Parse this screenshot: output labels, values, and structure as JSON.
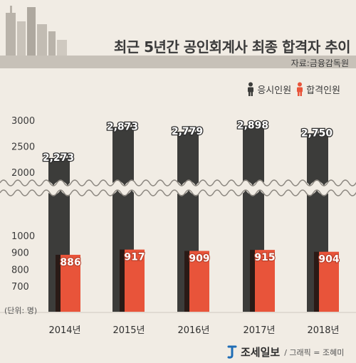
{
  "header": {
    "title": "최근 5년간 공인회계사 최종 합격자 추이",
    "source": "자료:금융감독원"
  },
  "legend": {
    "applicants_label": "응시인원",
    "passers_label": "합격인원",
    "applicants_icon": "person-icon",
    "passers_icon": "person-icon"
  },
  "unit_label": "(단위: 명)",
  "footer": {
    "brand": "조세일보",
    "credit": "/ 그래픽 = 조혜미",
    "logo_icon": "brand-logo-icon"
  },
  "colors": {
    "background": "#f1ece4",
    "applicants": "#3c3c3a",
    "passers": "#e8543a",
    "shadow": "#2a1a16"
  },
  "chart_data": {
    "type": "bar",
    "categories": [
      "2014년",
      "2015년",
      "2016년",
      "2017년",
      "2018년"
    ],
    "series": [
      {
        "name": "응시인원",
        "values": [
          2273,
          2873,
          2779,
          2898,
          2750
        ],
        "labels": [
          "2,273",
          "2,873",
          "2,779",
          "2,898",
          "2,750"
        ]
      },
      {
        "name": "합격인원",
        "values": [
          886,
          917,
          909,
          915,
          904
        ],
        "labels": [
          "886",
          "917",
          "909",
          "915",
          "904"
        ]
      }
    ],
    "y_axis": {
      "broken": true,
      "lower_range": [
        700,
        1000
      ],
      "upper_range": [
        2000,
        3000
      ],
      "ticks": [
        "3000",
        "2500",
        "2000",
        "1000",
        "900",
        "800",
        "700"
      ]
    }
  }
}
